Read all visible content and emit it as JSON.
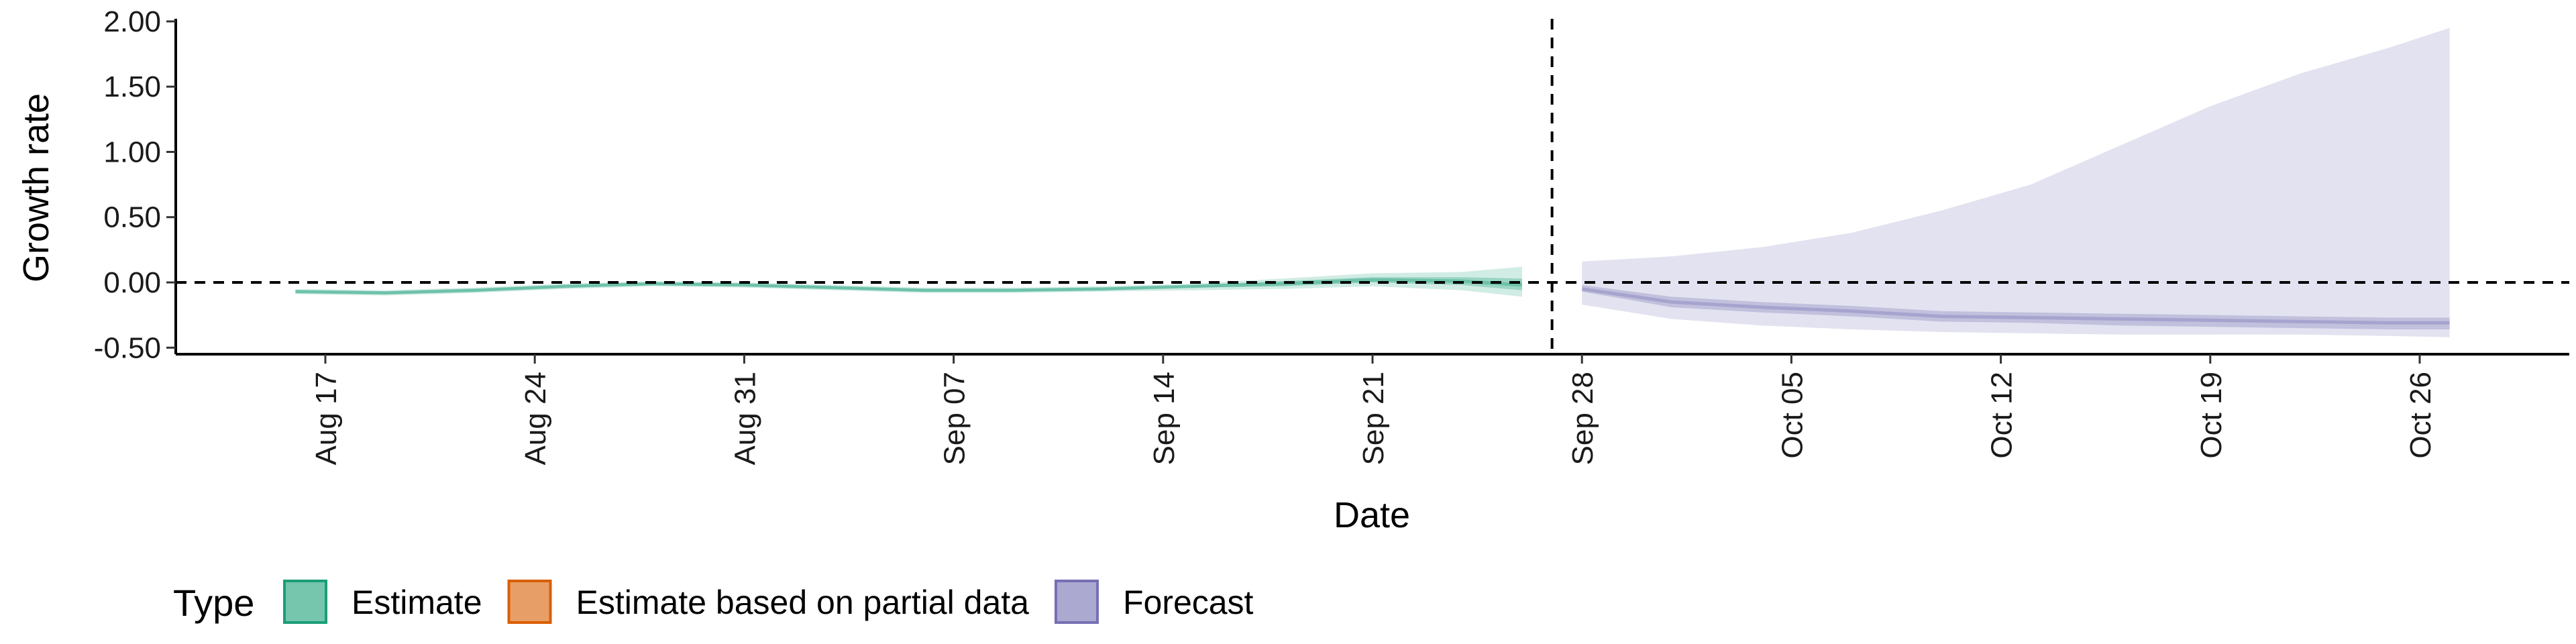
{
  "chart_data": {
    "type": "area",
    "xlabel": "Date",
    "ylabel": "Growth rate",
    "xlim": [
      "2020-08-12",
      "2020-10-31"
    ],
    "ylim": [
      -0.55,
      2.02
    ],
    "x_ticks": [
      {
        "date": "2020-08-17",
        "label": "Aug 17"
      },
      {
        "date": "2020-08-24",
        "label": "Aug 24"
      },
      {
        "date": "2020-08-31",
        "label": "Aug 31"
      },
      {
        "date": "2020-09-07",
        "label": "Sep 07"
      },
      {
        "date": "2020-09-14",
        "label": "Sep 14"
      },
      {
        "date": "2020-09-21",
        "label": "Sep 21"
      },
      {
        "date": "2020-09-28",
        "label": "Sep 28"
      },
      {
        "date": "2020-10-05",
        "label": "Oct 05"
      },
      {
        "date": "2020-10-12",
        "label": "Oct 12"
      },
      {
        "date": "2020-10-19",
        "label": "Oct 19"
      },
      {
        "date": "2020-10-26",
        "label": "Oct 26"
      }
    ],
    "y_ticks": [
      {
        "value": 2.0,
        "label": "2.00"
      },
      {
        "value": 1.5,
        "label": "1.50"
      },
      {
        "value": 1.0,
        "label": "1.00"
      },
      {
        "value": 0.5,
        "label": "0.50"
      },
      {
        "value": 0.0,
        "label": "0.00"
      },
      {
        "value": -0.5,
        "label": "-0.50"
      }
    ],
    "reference_lines": {
      "horizontal": 0.0,
      "vertical": "2020-09-27"
    },
    "legend": {
      "title": "Type",
      "position": "bottom",
      "entries": [
        {
          "label": "Estimate",
          "color": "#1b9e77"
        },
        {
          "label": "Estimate based on partial data",
          "color": "#d95f02"
        },
        {
          "label": "Forecast",
          "color": "#7570b3"
        }
      ]
    },
    "series": [
      {
        "name": "Estimate",
        "color": "#1b9e77",
        "x": [
          "2020-08-16",
          "2020-08-19",
          "2020-08-22",
          "2020-08-25",
          "2020-08-28",
          "2020-08-31",
          "2020-09-03",
          "2020-09-06",
          "2020-09-09",
          "2020-09-12",
          "2020-09-15",
          "2020-09-18",
          "2020-09-21",
          "2020-09-24",
          "2020-09-26"
        ],
        "median": [
          -0.07,
          -0.08,
          -0.06,
          -0.03,
          -0.01,
          -0.02,
          -0.04,
          -0.06,
          -0.06,
          -0.05,
          -0.03,
          -0.01,
          0.02,
          0.01,
          -0.02
        ],
        "lower_50": [
          -0.08,
          -0.09,
          -0.07,
          -0.04,
          -0.02,
          -0.03,
          -0.05,
          -0.07,
          -0.07,
          -0.06,
          -0.04,
          -0.03,
          0.0,
          -0.02,
          -0.06
        ],
        "upper_50": [
          -0.06,
          -0.07,
          -0.05,
          -0.02,
          0.0,
          -0.01,
          -0.03,
          -0.05,
          -0.05,
          -0.04,
          -0.02,
          0.01,
          0.04,
          0.04,
          0.03
        ],
        "lower_90": [
          -0.09,
          -0.1,
          -0.08,
          -0.05,
          -0.03,
          -0.04,
          -0.06,
          -0.08,
          -0.08,
          -0.07,
          -0.06,
          -0.05,
          -0.03,
          -0.06,
          -0.11
        ],
        "upper_90": [
          -0.05,
          -0.06,
          -0.04,
          -0.01,
          0.01,
          0.0,
          -0.02,
          -0.04,
          -0.04,
          -0.03,
          -0.01,
          0.03,
          0.07,
          0.08,
          0.12
        ]
      },
      {
        "name": "Forecast",
        "color": "#7570b3",
        "x": [
          "2020-09-28",
          "2020-10-01",
          "2020-10-04",
          "2020-10-07",
          "2020-10-10",
          "2020-10-13",
          "2020-10-16",
          "2020-10-19",
          "2020-10-22",
          "2020-10-25",
          "2020-10-27"
        ],
        "median": [
          -0.05,
          -0.15,
          -0.19,
          -0.22,
          -0.26,
          -0.27,
          -0.28,
          -0.29,
          -0.3,
          -0.31,
          -0.31
        ],
        "lower_50": [
          -0.07,
          -0.19,
          -0.23,
          -0.26,
          -0.3,
          -0.31,
          -0.33,
          -0.34,
          -0.35,
          -0.36,
          -0.36
        ],
        "upper_50": [
          -0.02,
          -0.11,
          -0.15,
          -0.18,
          -0.22,
          -0.23,
          -0.24,
          -0.25,
          -0.26,
          -0.27,
          -0.27
        ],
        "lower_90": [
          -0.17,
          -0.28,
          -0.33,
          -0.36,
          -0.38,
          -0.39,
          -0.4,
          -0.4,
          -0.4,
          -0.41,
          -0.42
        ],
        "upper_90": [
          0.16,
          0.2,
          0.27,
          0.38,
          0.55,
          0.75,
          1.05,
          1.35,
          1.6,
          1.8,
          1.95
        ]
      }
    ]
  }
}
